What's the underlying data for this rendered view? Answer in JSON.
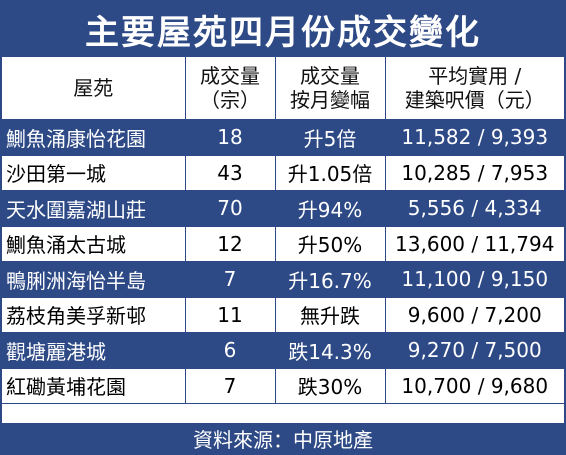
{
  "title": "主要屋苑四月份成交變化",
  "headers": {
    "estate": "屋苑",
    "volume": [
      "成交量",
      "（宗）"
    ],
    "change": [
      "成交量",
      "按月變幅"
    ],
    "price": [
      "平均實用 /",
      "建築呎價（元）"
    ]
  },
  "rows": [
    {
      "estate": "鰂魚涌康怡花園",
      "volume": "18",
      "change": "升5倍",
      "price": "11,582 / 9,393"
    },
    {
      "estate": "沙田第一城",
      "volume": "43",
      "change": "升1.05倍",
      "price": "10,285 / 7,953"
    },
    {
      "estate": "天水圍嘉湖山莊",
      "volume": "70",
      "change": "升94%",
      "price": "5,556 / 4,334"
    },
    {
      "estate": "鰂魚涌太古城",
      "volume": "12",
      "change": "升50%",
      "price": "13,600 / 11,794"
    },
    {
      "estate": "鴨脷洲海怡半島",
      "volume": "7",
      "change": "升16.7%",
      "price": "11,100 / 9,150"
    },
    {
      "estate": "荔枝角美孚新邨",
      "volume": "11",
      "change": "無升跌",
      "price": "9,600 / 7,200"
    },
    {
      "estate": "觀塘麗港城",
      "volume": "6",
      "change": "跌14.3%",
      "price": "9,270 / 7,500"
    },
    {
      "estate": "紅磡黃埔花園",
      "volume": "7",
      "change": "跌30%",
      "price": "10,700 / 9,680"
    }
  ],
  "source": "資料來源：中原地產",
  "colors": {
    "band": "#2e4a86",
    "text_on_band": "#ffffff",
    "text": "#000000"
  }
}
